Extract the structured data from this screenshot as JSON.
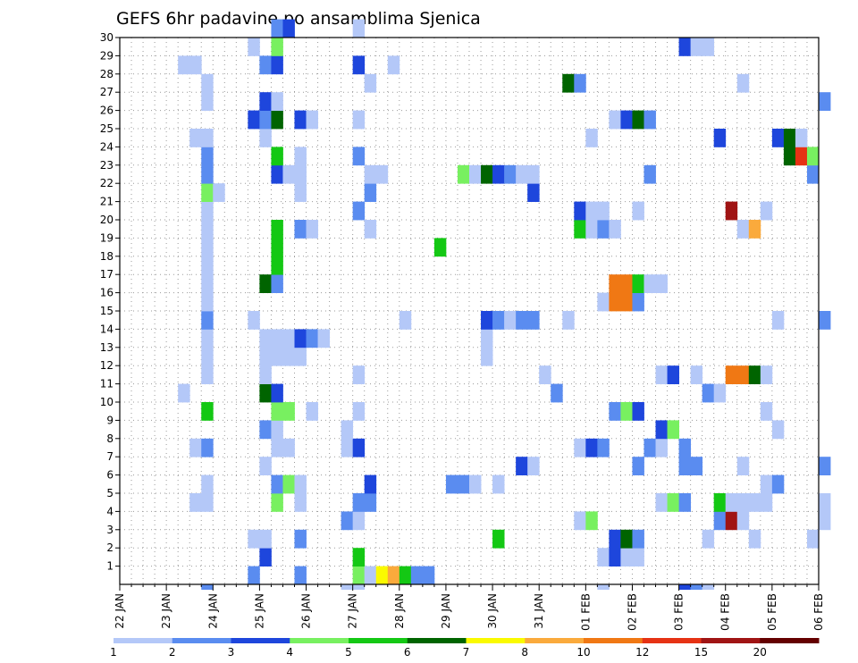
{
  "chart_data": {
    "type": "heatmap",
    "title": "GEFS 6hr padavine po ansamblima Sjenica",
    "xlabel": "",
    "ylabel": "",
    "x_ticks": [
      "22 JAN",
      "23 JAN",
      "24 JAN",
      "25 JAN",
      "26 JAN",
      "27 JAN",
      "28 JAN",
      "29 JAN",
      "30 JAN",
      "31 JAN",
      "01 FEB",
      "02 FEB",
      "03 FEB",
      "04 FEB",
      "05 FEB",
      "06 FEB"
    ],
    "y_ticks": [
      "1",
      "2",
      "3",
      "4",
      "5",
      "6",
      "7",
      "8",
      "9",
      "10",
      "11",
      "12",
      "13",
      "14",
      "15",
      "16",
      "17",
      "18",
      "19",
      "20",
      "21",
      "22",
      "23",
      "24",
      "25",
      "26",
      "27",
      "28",
      "29",
      "30"
    ],
    "x_steps_per_day": 4,
    "ylim": [
      0,
      30
    ],
    "grid": true,
    "legend_position": "bottom",
    "color_scale": {
      "labels": [
        "1",
        "2",
        "3",
        "4",
        "5",
        "6",
        "7",
        "8",
        "10",
        "12",
        "15",
        "20"
      ],
      "colors": [
        "#b4c8f8",
        "#5a8cf0",
        "#1e46dc",
        "#78f060",
        "#14c814",
        "#006400",
        "#fafa00",
        "#faaa3c",
        "#f07814",
        "#e63214",
        "#a01414",
        "#640000"
      ]
    },
    "cells": [
      [
        1,
        11,
        2
      ],
      [
        1,
        15,
        2
      ],
      [
        1,
        20,
        4
      ],
      [
        1,
        21,
        1
      ],
      [
        1,
        22,
        7
      ],
      [
        1,
        23,
        8
      ],
      [
        1,
        24,
        5
      ],
      [
        1,
        25,
        2
      ],
      [
        1,
        26,
        2
      ],
      [
        2,
        12,
        3
      ],
      [
        2,
        20,
        5
      ],
      [
        2,
        41,
        1
      ],
      [
        2,
        42,
        3
      ],
      [
        2,
        43,
        1
      ],
      [
        2,
        44,
        1
      ],
      [
        3,
        11,
        1
      ],
      [
        3,
        12,
        1
      ],
      [
        3,
        15,
        2
      ],
      [
        3,
        32,
        5
      ],
      [
        3,
        42,
        3
      ],
      [
        3,
        43,
        6
      ],
      [
        3,
        44,
        2
      ],
      [
        3,
        50,
        1
      ],
      [
        3,
        54,
        1
      ],
      [
        3,
        59,
        1
      ],
      [
        4,
        19,
        2
      ],
      [
        4,
        20,
        1
      ],
      [
        4,
        39,
        1
      ],
      [
        4,
        40,
        4
      ],
      [
        4,
        51,
        2
      ],
      [
        4,
        52,
        11
      ],
      [
        4,
        53,
        1
      ],
      [
        4,
        60,
        1
      ],
      [
        5,
        6,
        1
      ],
      [
        5,
        7,
        1
      ],
      [
        5,
        13,
        4
      ],
      [
        5,
        15,
        1
      ],
      [
        5,
        20,
        2
      ],
      [
        5,
        21,
        2
      ],
      [
        5,
        46,
        1
      ],
      [
        5,
        47,
        4
      ],
      [
        5,
        48,
        2
      ],
      [
        5,
        51,
        5
      ],
      [
        5,
        52,
        1
      ],
      [
        5,
        53,
        1
      ],
      [
        5,
        54,
        1
      ],
      [
        5,
        55,
        1
      ],
      [
        5,
        60,
        1
      ],
      [
        6,
        7,
        1
      ],
      [
        6,
        13,
        2
      ],
      [
        6,
        14,
        4
      ],
      [
        6,
        15,
        1
      ],
      [
        6,
        21,
        3
      ],
      [
        6,
        28,
        2
      ],
      [
        6,
        29,
        2
      ],
      [
        6,
        30,
        1
      ],
      [
        6,
        32,
        1
      ],
      [
        6,
        55,
        1
      ],
      [
        6,
        56,
        2
      ],
      [
        7,
        12,
        1
      ],
      [
        7,
        34,
        3
      ],
      [
        7,
        35,
        1
      ],
      [
        7,
        44,
        2
      ],
      [
        7,
        48,
        2
      ],
      [
        7,
        49,
        2
      ],
      [
        7,
        53,
        1
      ],
      [
        7,
        60,
        2
      ],
      [
        8,
        6,
        1
      ],
      [
        8,
        7,
        2
      ],
      [
        8,
        13,
        1
      ],
      [
        8,
        14,
        1
      ],
      [
        8,
        19,
        1
      ],
      [
        8,
        20,
        3
      ],
      [
        8,
        39,
        1
      ],
      [
        8,
        40,
        3
      ],
      [
        8,
        41,
        2
      ],
      [
        8,
        45,
        2
      ],
      [
        8,
        46,
        1
      ],
      [
        8,
        48,
        2
      ],
      [
        9,
        12,
        2
      ],
      [
        9,
        13,
        1
      ],
      [
        9,
        19,
        1
      ],
      [
        9,
        46,
        3
      ],
      [
        9,
        47,
        4
      ],
      [
        9,
        56,
        1
      ],
      [
        10,
        7,
        5
      ],
      [
        10,
        13,
        4
      ],
      [
        10,
        14,
        4
      ],
      [
        10,
        16,
        1
      ],
      [
        10,
        20,
        1
      ],
      [
        10,
        42,
        2
      ],
      [
        10,
        43,
        4
      ],
      [
        10,
        44,
        3
      ],
      [
        10,
        55,
        1
      ],
      [
        11,
        5,
        1
      ],
      [
        11,
        12,
        6
      ],
      [
        11,
        13,
        3
      ],
      [
        11,
        37,
        2
      ],
      [
        11,
        50,
        2
      ],
      [
        11,
        51,
        1
      ],
      [
        12,
        7,
        1
      ],
      [
        12,
        12,
        1
      ],
      [
        12,
        20,
        1
      ],
      [
        12,
        36,
        1
      ],
      [
        12,
        46,
        1
      ],
      [
        12,
        47,
        3
      ],
      [
        12,
        49,
        1
      ],
      [
        12,
        52,
        9
      ],
      [
        12,
        53,
        9
      ],
      [
        12,
        54,
        6
      ],
      [
        12,
        55,
        1
      ],
      [
        13,
        7,
        1
      ],
      [
        13,
        12,
        1
      ],
      [
        13,
        13,
        1
      ],
      [
        13,
        14,
        1
      ],
      [
        13,
        15,
        1
      ],
      [
        13,
        31,
        1
      ],
      [
        14,
        7,
        1
      ],
      [
        14,
        12,
        1
      ],
      [
        14,
        13,
        1
      ],
      [
        14,
        14,
        1
      ],
      [
        14,
        15,
        3
      ],
      [
        14,
        16,
        2
      ],
      [
        14,
        17,
        1
      ],
      [
        14,
        31,
        1
      ],
      [
        15,
        7,
        2
      ],
      [
        15,
        11,
        1
      ],
      [
        15,
        24,
        1
      ],
      [
        15,
        31,
        3
      ],
      [
        15,
        32,
        2
      ],
      [
        15,
        33,
        1
      ],
      [
        15,
        34,
        2
      ],
      [
        15,
        35,
        2
      ],
      [
        15,
        38,
        1
      ],
      [
        15,
        56,
        1
      ],
      [
        15,
        60,
        2
      ],
      [
        16,
        7,
        1
      ],
      [
        16,
        41,
        1
      ],
      [
        16,
        42,
        9
      ],
      [
        16,
        43,
        9
      ],
      [
        16,
        44,
        2
      ],
      [
        17,
        7,
        1
      ],
      [
        17,
        12,
        6
      ],
      [
        17,
        13,
        2
      ],
      [
        17,
        42,
        9
      ],
      [
        17,
        43,
        9
      ],
      [
        17,
        44,
        5
      ],
      [
        17,
        45,
        1
      ],
      [
        17,
        46,
        1
      ],
      [
        18,
        7,
        1
      ],
      [
        18,
        13,
        5
      ],
      [
        19,
        7,
        1
      ],
      [
        19,
        13,
        5
      ],
      [
        19,
        27,
        5
      ],
      [
        20,
        7,
        1
      ],
      [
        20,
        13,
        5
      ],
      [
        20,
        15,
        2
      ],
      [
        20,
        16,
        1
      ],
      [
        20,
        21,
        1
      ],
      [
        20,
        39,
        5
      ],
      [
        20,
        40,
        1
      ],
      [
        20,
        41,
        2
      ],
      [
        20,
        42,
        1
      ],
      [
        20,
        53,
        1
      ],
      [
        20,
        54,
        8
      ],
      [
        21,
        7,
        1
      ],
      [
        21,
        20,
        2
      ],
      [
        21,
        39,
        3
      ],
      [
        21,
        40,
        1
      ],
      [
        21,
        41,
        1
      ],
      [
        21,
        44,
        1
      ],
      [
        21,
        52,
        11
      ],
      [
        21,
        55,
        1
      ],
      [
        22,
        7,
        4
      ],
      [
        22,
        8,
        1
      ],
      [
        22,
        15,
        1
      ],
      [
        22,
        21,
        2
      ],
      [
        22,
        35,
        3
      ],
      [
        23,
        7,
        2
      ],
      [
        23,
        13,
        3
      ],
      [
        23,
        14,
        1
      ],
      [
        23,
        15,
        1
      ],
      [
        23,
        21,
        1
      ],
      [
        23,
        22,
        1
      ],
      [
        23,
        29,
        4
      ],
      [
        23,
        30,
        1
      ],
      [
        23,
        31,
        6
      ],
      [
        23,
        32,
        3
      ],
      [
        23,
        33,
        2
      ],
      [
        23,
        34,
        1
      ],
      [
        23,
        35,
        1
      ],
      [
        23,
        45,
        2
      ],
      [
        23,
        59,
        2
      ],
      [
        24,
        7,
        2
      ],
      [
        24,
        13,
        5
      ],
      [
        24,
        15,
        1
      ],
      [
        24,
        20,
        2
      ],
      [
        24,
        57,
        6
      ],
      [
        24,
        58,
        10
      ],
      [
        24,
        59,
        4
      ],
      [
        25,
        6,
        1
      ],
      [
        25,
        7,
        1
      ],
      [
        25,
        12,
        1
      ],
      [
        25,
        40,
        1
      ],
      [
        25,
        51,
        3
      ],
      [
        25,
        56,
        3
      ],
      [
        25,
        57,
        6
      ],
      [
        25,
        58,
        1
      ],
      [
        26,
        11,
        3
      ],
      [
        26,
        12,
        2
      ],
      [
        26,
        13,
        6
      ],
      [
        26,
        15,
        3
      ],
      [
        26,
        16,
        1
      ],
      [
        26,
        20,
        1
      ],
      [
        26,
        42,
        1
      ],
      [
        26,
        43,
        3
      ],
      [
        26,
        44,
        6
      ],
      [
        26,
        45,
        2
      ],
      [
        27,
        7,
        1
      ],
      [
        27,
        12,
        3
      ],
      [
        27,
        13,
        1
      ],
      [
        27,
        60,
        2
      ],
      [
        28,
        7,
        1
      ],
      [
        28,
        21,
        1
      ],
      [
        28,
        38,
        6
      ],
      [
        28,
        39,
        2
      ],
      [
        28,
        53,
        1
      ],
      [
        29,
        5,
        1
      ],
      [
        29,
        6,
        1
      ],
      [
        29,
        12,
        2
      ],
      [
        29,
        13,
        3
      ],
      [
        29,
        20,
        3
      ],
      [
        29,
        23,
        1
      ],
      [
        30,
        11,
        1
      ],
      [
        30,
        13,
        4
      ],
      [
        30,
        48,
        3
      ],
      [
        30,
        49,
        1
      ],
      [
        30,
        50,
        1
      ],
      [
        31,
        13,
        2
      ],
      [
        31,
        14,
        3
      ],
      [
        31,
        20,
        1
      ]
    ],
    "bottom_row": [
      [
        7,
        2
      ],
      [
        19,
        1
      ],
      [
        20,
        1
      ],
      [
        41,
        1
      ],
      [
        48,
        3
      ],
      [
        49,
        2
      ],
      [
        50,
        1
      ]
    ]
  }
}
